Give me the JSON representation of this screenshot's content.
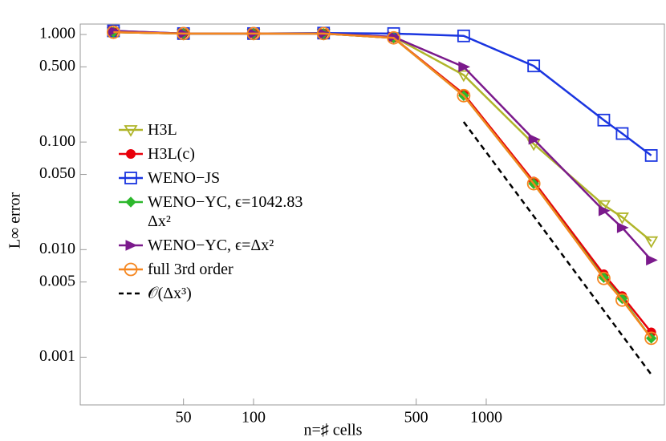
{
  "chart_data": {
    "type": "line",
    "xlabel": "n=♯ cells",
    "ylabel": "L∞ error",
    "log_x": true,
    "log_y": true,
    "xlim": [
      18,
      5830
    ],
    "ylim": [
      0.00036,
      1.25
    ],
    "xticks": [
      50,
      100,
      500,
      1000
    ],
    "yticks": [
      {
        "value": 1,
        "label": "1.000"
      },
      {
        "value": 0.5,
        "label": "0.500"
      },
      {
        "value": 0.1,
        "label": "0.100"
      },
      {
        "value": 0.05,
        "label": "0.050"
      },
      {
        "value": 0.01,
        "label": "0.010"
      },
      {
        "value": 0.005,
        "label": "0.005"
      },
      {
        "value": 0.001,
        "label": "0.001"
      }
    ],
    "legend": "left",
    "x": [
      25,
      50,
      100,
      200,
      400,
      800,
      1600,
      3200,
      3840,
      5120
    ],
    "series": [
      {
        "name": "H3L",
        "color": "#b0b52a",
        "marker": "triangle-down-open",
        "values": [
          1.05,
          1.02,
          1.02,
          1.02,
          0.95,
          0.42,
          0.096,
          0.026,
          0.02,
          0.012
        ]
      },
      {
        "name": "H3L(c)",
        "color": "#e8000b",
        "marker": "circle-filled",
        "values": [
          1.05,
          1.02,
          1.02,
          1.02,
          0.93,
          0.28,
          0.043,
          0.0059,
          0.0037,
          0.0017
        ]
      },
      {
        "name": "WENO−JS",
        "color": "#1a35e0",
        "marker": "square-open",
        "values": [
          1.08,
          1.02,
          1.02,
          1.03,
          1.02,
          0.97,
          0.51,
          0.16,
          0.12,
          0.075
        ]
      },
      {
        "name": "WENO−YC, ϵ=1042.83 Δx²",
        "color": "#2db82d",
        "marker": "diamond-filled",
        "values": [
          1.05,
          1.02,
          1.02,
          1.02,
          0.93,
          0.27,
          0.041,
          0.0055,
          0.0035,
          0.0015
        ]
      },
      {
        "name": "WENO−YC, ϵ=Δx²",
        "color": "#7b1a8c",
        "marker": "triangle-right-filled",
        "values": [
          1.08,
          1.02,
          1.02,
          1.02,
          0.95,
          0.5,
          0.106,
          0.023,
          0.016,
          0.008
        ]
      },
      {
        "name": "full 3rd order",
        "color": "#f5861f",
        "marker": "circle-open",
        "values": [
          1.05,
          1.02,
          1.02,
          1.02,
          0.93,
          0.27,
          0.041,
          0.0054,
          0.0034,
          0.0015
        ]
      },
      {
        "name": "𝒪(Δx³)",
        "color": "#000000",
        "marker": "none",
        "dashed": true,
        "x": [
          800,
          5120
        ],
        "values": [
          0.154,
          0.00069
        ]
      }
    ]
  }
}
